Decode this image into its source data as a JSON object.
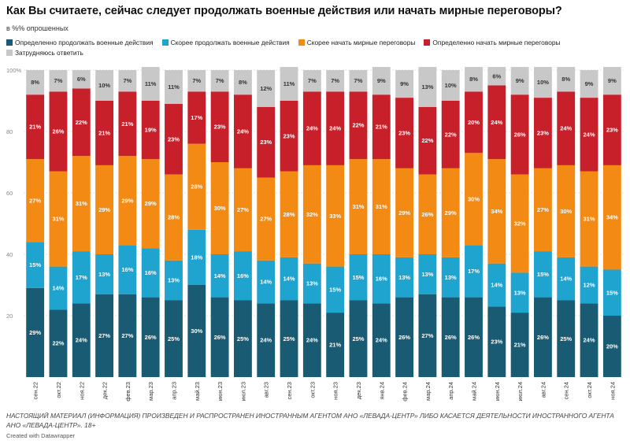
{
  "header": {
    "title": "Как Вы считаете, сейчас следует продолжать военные действия или начать мирные переговоры?",
    "subtitle": "в %% опрошенных"
  },
  "footer": {
    "note": "НАСТОЯЩИЙ МАТЕРИАЛ (ИНФОРМАЦИЯ) ПРОИЗВЕДЕН И РАСПРОСТРАНЕН ИНОСТРАННЫМ АГЕНТОМ АНО «ЛЕВАДА-ЦЕНТР» ЛИБО КАСАЕТСЯ ДЕЯТЕЛЬНОСТИ ИНОСТРАННОГО АГЕНТА АНО «ЛЕВАДА-ЦЕНТР». 18+",
    "credit": "Created with Datawrapper"
  },
  "chart_data": {
    "type": "bar",
    "stacked": true,
    "orientation": "vertical",
    "ylim": [
      0,
      100
    ],
    "yticks": [
      "100%",
      "80",
      "60",
      "40",
      "20"
    ],
    "grid": true,
    "legend_position": "top",
    "categories": [
      "сен.22",
      "окт.22",
      "ноя.22",
      "дек.22",
      "фев.23",
      "мар.23",
      "апр.23",
      "май.23",
      "июн.23",
      "июл.23",
      "авг.23",
      "сен.23",
      "окт.23",
      "ноя.23",
      "дек.23",
      "янв.24",
      "фев.24",
      "мар.24",
      "апр.24",
      "май.24",
      "июн.24",
      "июл.24",
      "авг.24",
      "сен.24",
      "окт.24",
      "ноя.24"
    ],
    "series": [
      {
        "name": "Определенно продолжать военные действия",
        "color": "#1a5b74",
        "values": [
          29,
          22,
          24,
          27,
          27,
          26,
          25,
          30,
          26,
          25,
          24,
          25,
          24,
          21,
          25,
          24,
          26,
          27,
          26,
          26,
          23,
          21,
          26,
          25,
          24,
          20
        ]
      },
      {
        "name": "Скорее продолжать военные действия",
        "color": "#1fa3cf",
        "values": [
          15,
          14,
          17,
          13,
          16,
          16,
          13,
          18,
          14,
          16,
          14,
          14,
          13,
          15,
          15,
          16,
          13,
          13,
          13,
          17,
          14,
          13,
          15,
          14,
          12,
          15
        ]
      },
      {
        "name": "Скорее начать мирные переговоры",
        "color": "#f28a14",
        "values": [
          27,
          31,
          31,
          29,
          29,
          29,
          28,
          28,
          30,
          27,
          27,
          28,
          32,
          33,
          31,
          31,
          29,
          26,
          29,
          30,
          34,
          32,
          27,
          30,
          31,
          34
        ]
      },
      {
        "name": "Определенно начать мирные переговоры",
        "color": "#c8202a",
        "values": [
          21,
          26,
          22,
          21,
          21,
          19,
          23,
          17,
          23,
          24,
          23,
          23,
          24,
          24,
          22,
          21,
          23,
          22,
          22,
          20,
          24,
          26,
          23,
          24,
          24,
          23
        ]
      },
      {
        "name": "Затрудняюсь ответить",
        "color": "#c8c8c8",
        "values": [
          8,
          7,
          6,
          10,
          7,
          11,
          11,
          7,
          7,
          8,
          12,
          11,
          7,
          7,
          7,
          9,
          9,
          13,
          10,
          8,
          6,
          9,
          10,
          8,
          9,
          9
        ]
      }
    ]
  }
}
